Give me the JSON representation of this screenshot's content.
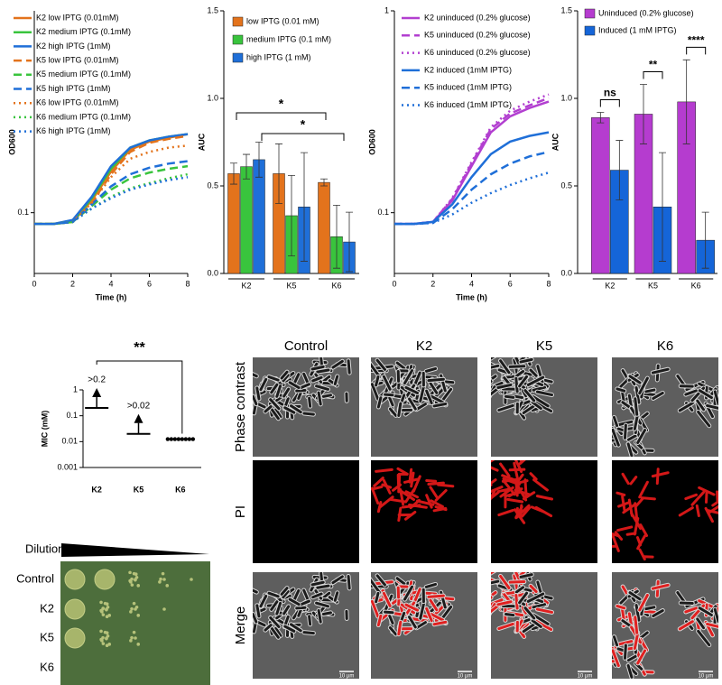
{
  "chart_data": [
    {
      "type": "line",
      "y_scale": "log",
      "x_label": "Time (h)",
      "y_label": "OD600",
      "x": [
        0,
        1,
        2,
        3,
        4,
        5,
        6,
        7,
        8
      ],
      "xlim": [
        0,
        8
      ],
      "xticks": [
        0,
        2,
        4,
        6,
        8
      ],
      "ylim": [
        0.05,
        1
      ],
      "yticks": [
        0.1
      ],
      "series": [
        {
          "name": "K2 low IPTG (0.01mM)",
          "color": "#e3731c",
          "dash": "solid",
          "values": [
            0.088,
            0.088,
            0.09,
            0.115,
            0.16,
            0.205,
            0.225,
            0.235,
            0.245
          ]
        },
        {
          "name": "K2 medium IPTG (0.1mM)",
          "color": "#39c43d",
          "dash": "solid",
          "values": [
            0.088,
            0.088,
            0.09,
            0.118,
            0.165,
            0.21,
            0.228,
            0.238,
            0.245
          ]
        },
        {
          "name": "K2 high IPTG (1mM)",
          "color": "#1f6fd8",
          "dash": "solid",
          "values": [
            0.088,
            0.088,
            0.092,
            0.12,
            0.17,
            0.21,
            0.228,
            0.238,
            0.245
          ]
        },
        {
          "name": "K5 low IPTG (0.01mM)",
          "color": "#e3731c",
          "dash": "dashed",
          "values": [
            0.088,
            0.088,
            0.09,
            0.112,
            0.155,
            0.2,
            0.222,
            0.232,
            0.24
          ]
        },
        {
          "name": "K5 medium IPTG (0.1mM)",
          "color": "#39c43d",
          "dash": "dashed",
          "values": [
            0.088,
            0.088,
            0.09,
            0.108,
            0.13,
            0.148,
            0.158,
            0.165,
            0.17
          ]
        },
        {
          "name": "K5 high IPTG (1mM)",
          "color": "#1f6fd8",
          "dash": "dashed",
          "values": [
            0.088,
            0.088,
            0.09,
            0.11,
            0.135,
            0.155,
            0.167,
            0.175,
            0.18
          ]
        },
        {
          "name": "K6 low IPTG (0.01mM)",
          "color": "#e3731c",
          "dash": "dotted",
          "values": [
            0.088,
            0.088,
            0.09,
            0.112,
            0.15,
            0.185,
            0.2,
            0.21,
            0.215
          ]
        },
        {
          "name": "K6 medium IPTG (0.1mM)",
          "color": "#39c43d",
          "dash": "dotted",
          "values": [
            0.088,
            0.088,
            0.09,
            0.105,
            0.12,
            0.132,
            0.14,
            0.148,
            0.155
          ]
        },
        {
          "name": "K6 high IPTG (1mM)",
          "color": "#1f6fd8",
          "dash": "dotted",
          "values": [
            0.088,
            0.088,
            0.09,
            0.105,
            0.118,
            0.13,
            0.138,
            0.145,
            0.15
          ]
        }
      ]
    },
    {
      "type": "bar",
      "y_label": "AUC",
      "categories": [
        "K2",
        "K5",
        "K6"
      ],
      "ylim": [
        0,
        1.5
      ],
      "yticks": [
        {
          "value": 0,
          "label": "0.0"
        },
        {
          "value": 0.5,
          "label": "0.5"
        },
        {
          "value": 1,
          "label": "1.0"
        },
        {
          "value": 1.5,
          "label": "1.5"
        }
      ],
      "series": [
        {
          "name": "low IPTG (0.01 mM)",
          "color": "#e3731c",
          "values": [
            0.57,
            0.57,
            0.52
          ],
          "errors": [
            0.06,
            0.17,
            0.02
          ]
        },
        {
          "name": "medium IPTG (0.1 mM)",
          "color": "#39c43d",
          "values": [
            0.61,
            0.33,
            0.21
          ],
          "errors": [
            0.07,
            0.23,
            0.18
          ]
        },
        {
          "name": "high IPTG (1 mM)",
          "color": "#1f6fd8",
          "values": [
            0.65,
            0.38,
            0.18
          ],
          "errors": [
            0.1,
            0.31,
            0.17
          ]
        }
      ],
      "annotations": [
        "*",
        "*"
      ]
    },
    {
      "type": "line",
      "y_scale": "log",
      "x_label": "Time (h)",
      "y_label": "OD600",
      "x": [
        0,
        1,
        2,
        3,
        4,
        5,
        6,
        7,
        8
      ],
      "xlim": [
        0,
        8
      ],
      "xticks": [
        0,
        2,
        4,
        6,
        8
      ],
      "ylim": [
        0.05,
        1
      ],
      "yticks": [
        0.1,
        1
      ],
      "series": [
        {
          "name": "K2 uninduced (0.2% glucose)",
          "color": "#b23fd0",
          "dash": "solid",
          "values": [
            0.088,
            0.088,
            0.09,
            0.115,
            0.17,
            0.25,
            0.3,
            0.33,
            0.355
          ]
        },
        {
          "name": "K5 uninduced (0.2% glucose)",
          "color": "#b23fd0",
          "dash": "dashed",
          "values": [
            0.088,
            0.088,
            0.09,
            0.117,
            0.175,
            0.26,
            0.31,
            0.34,
            0.37
          ]
        },
        {
          "name": "K6 uninduced (0.2% glucose)",
          "color": "#b23fd0",
          "dash": "dotted",
          "values": [
            0.088,
            0.088,
            0.09,
            0.118,
            0.178,
            0.265,
            0.32,
            0.355,
            0.385
          ]
        },
        {
          "name": "K2 induced (1mM IPTG)",
          "color": "#1f6fd8",
          "dash": "solid",
          "values": [
            0.088,
            0.088,
            0.09,
            0.11,
            0.15,
            0.195,
            0.225,
            0.24,
            0.25
          ]
        },
        {
          "name": "K5 induced (1mM IPTG)",
          "color": "#1f6fd8",
          "dash": "dashed",
          "values": [
            0.088,
            0.088,
            0.089,
            0.104,
            0.13,
            0.155,
            0.175,
            0.19,
            0.2
          ]
        },
        {
          "name": "K6 induced (1mM IPTG)",
          "color": "#1f6fd8",
          "dash": "dotted",
          "values": [
            0.088,
            0.088,
            0.089,
            0.098,
            0.112,
            0.125,
            0.137,
            0.148,
            0.158
          ]
        }
      ]
    },
    {
      "type": "bar",
      "y_label": "AUC",
      "categories": [
        "K2",
        "K5",
        "K6"
      ],
      "ylim": [
        0,
        1.5
      ],
      "yticks": [
        {
          "value": 0,
          "label": "0.0"
        },
        {
          "value": 0.5,
          "label": "0.5"
        },
        {
          "value": 1,
          "label": "1.0"
        },
        {
          "value": 1.5,
          "label": "1.5"
        }
      ],
      "series": [
        {
          "name": "Uninduced  (0.2% glucose)",
          "color": "#b53ccf",
          "values": [
            0.89,
            0.91,
            0.98
          ],
          "errors": [
            0.03,
            0.17,
            0.24
          ]
        },
        {
          "name": "Induced (1 mM IPTG)",
          "color": "#1565d8",
          "values": [
            0.59,
            0.38,
            0.19
          ],
          "errors": [
            0.17,
            0.31,
            0.16
          ]
        }
      ],
      "annotations": [
        "ns",
        "**",
        "****"
      ]
    },
    {
      "type": "dot",
      "y_scale": "log",
      "y_label": "MIC (mM)",
      "categories": [
        "K2",
        "K5",
        "K6"
      ],
      "ylim": [
        0.001,
        1
      ],
      "yticks": [
        1,
        0.1,
        0.01,
        0.001
      ],
      "values": [
        [
          0.2
        ],
        [
          0.02
        ],
        [
          0.0125,
          0.0125,
          0.0125,
          0.0125,
          0.0125,
          0.0125,
          0.0125,
          0.0125
        ]
      ],
      "value_labels": [
        [
          ">0.2"
        ],
        [
          ">0.02"
        ],
        [
          null,
          null,
          null,
          null,
          null,
          null,
          null,
          null
        ]
      ],
      "annotations": [
        "**"
      ]
    }
  ],
  "plate": {
    "title": "Dilution",
    "rows": [
      "Control",
      "K2",
      "K5",
      "K6"
    ]
  },
  "microscopy": {
    "columns": [
      "Control",
      "K2",
      "K5",
      "K6"
    ],
    "rows": [
      "Phase contrast",
      "PI",
      "Merge"
    ],
    "scale_bar": "10 µm"
  }
}
